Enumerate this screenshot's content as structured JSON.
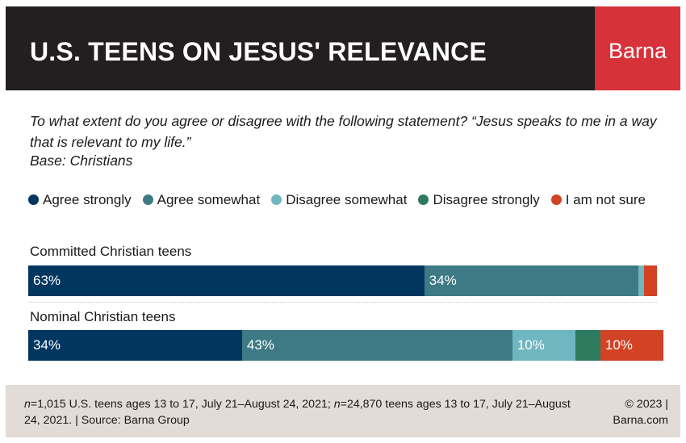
{
  "header": {
    "title": "U.S. TEENS ON JESUS' RELEVANCE",
    "brand": "Barna",
    "colors": {
      "background": "#231f20",
      "brand_background": "#d7323a"
    }
  },
  "question": "To what extent do you agree or disagree with the following statement? “Jesus speaks to me in a way that is relevant to my life.”",
  "base": "Base: Christians",
  "chart_data": {
    "type": "bar",
    "orientation": "horizontal",
    "stacked": true,
    "categories": [
      "Committed Christian teens",
      "Nominal Christian teens"
    ],
    "series": [
      {
        "name": "Agree strongly",
        "color": "#003660",
        "values": [
          63,
          34
        ],
        "labels": [
          "63%",
          "34%"
        ]
      },
      {
        "name": "Agree somewhat",
        "color": "#3e7a85",
        "values": [
          34,
          43
        ],
        "labels": [
          "34%",
          "43%"
        ]
      },
      {
        "name": "Disagree somewhat",
        "color": "#6fb6c0",
        "values": [
          1,
          10
        ],
        "labels": [
          "",
          "10%"
        ]
      },
      {
        "name": "Disagree strongly",
        "color": "#2e7a5e",
        "values": [
          0,
          4
        ],
        "labels": [
          "",
          ""
        ]
      },
      {
        "name": "I am not sure",
        "color": "#d14324",
        "values": [
          2,
          10
        ],
        "labels": [
          "",
          "10%"
        ]
      }
    ],
    "xlim": [
      0,
      100
    ],
    "legend_position": "top",
    "grid": false
  },
  "footer": {
    "note_n1": "n",
    "note_part1": "=1,015 U.S. teens ages 13 to 17, July 21–August 24, 2021; ",
    "note_n2": "n",
    "note_part2": "=24,870 teens ages 13 to 17, July 21–August 24, 2021. | Source: Barna Group",
    "copyright": "© 2023 |",
    "site": "Barna.com"
  }
}
